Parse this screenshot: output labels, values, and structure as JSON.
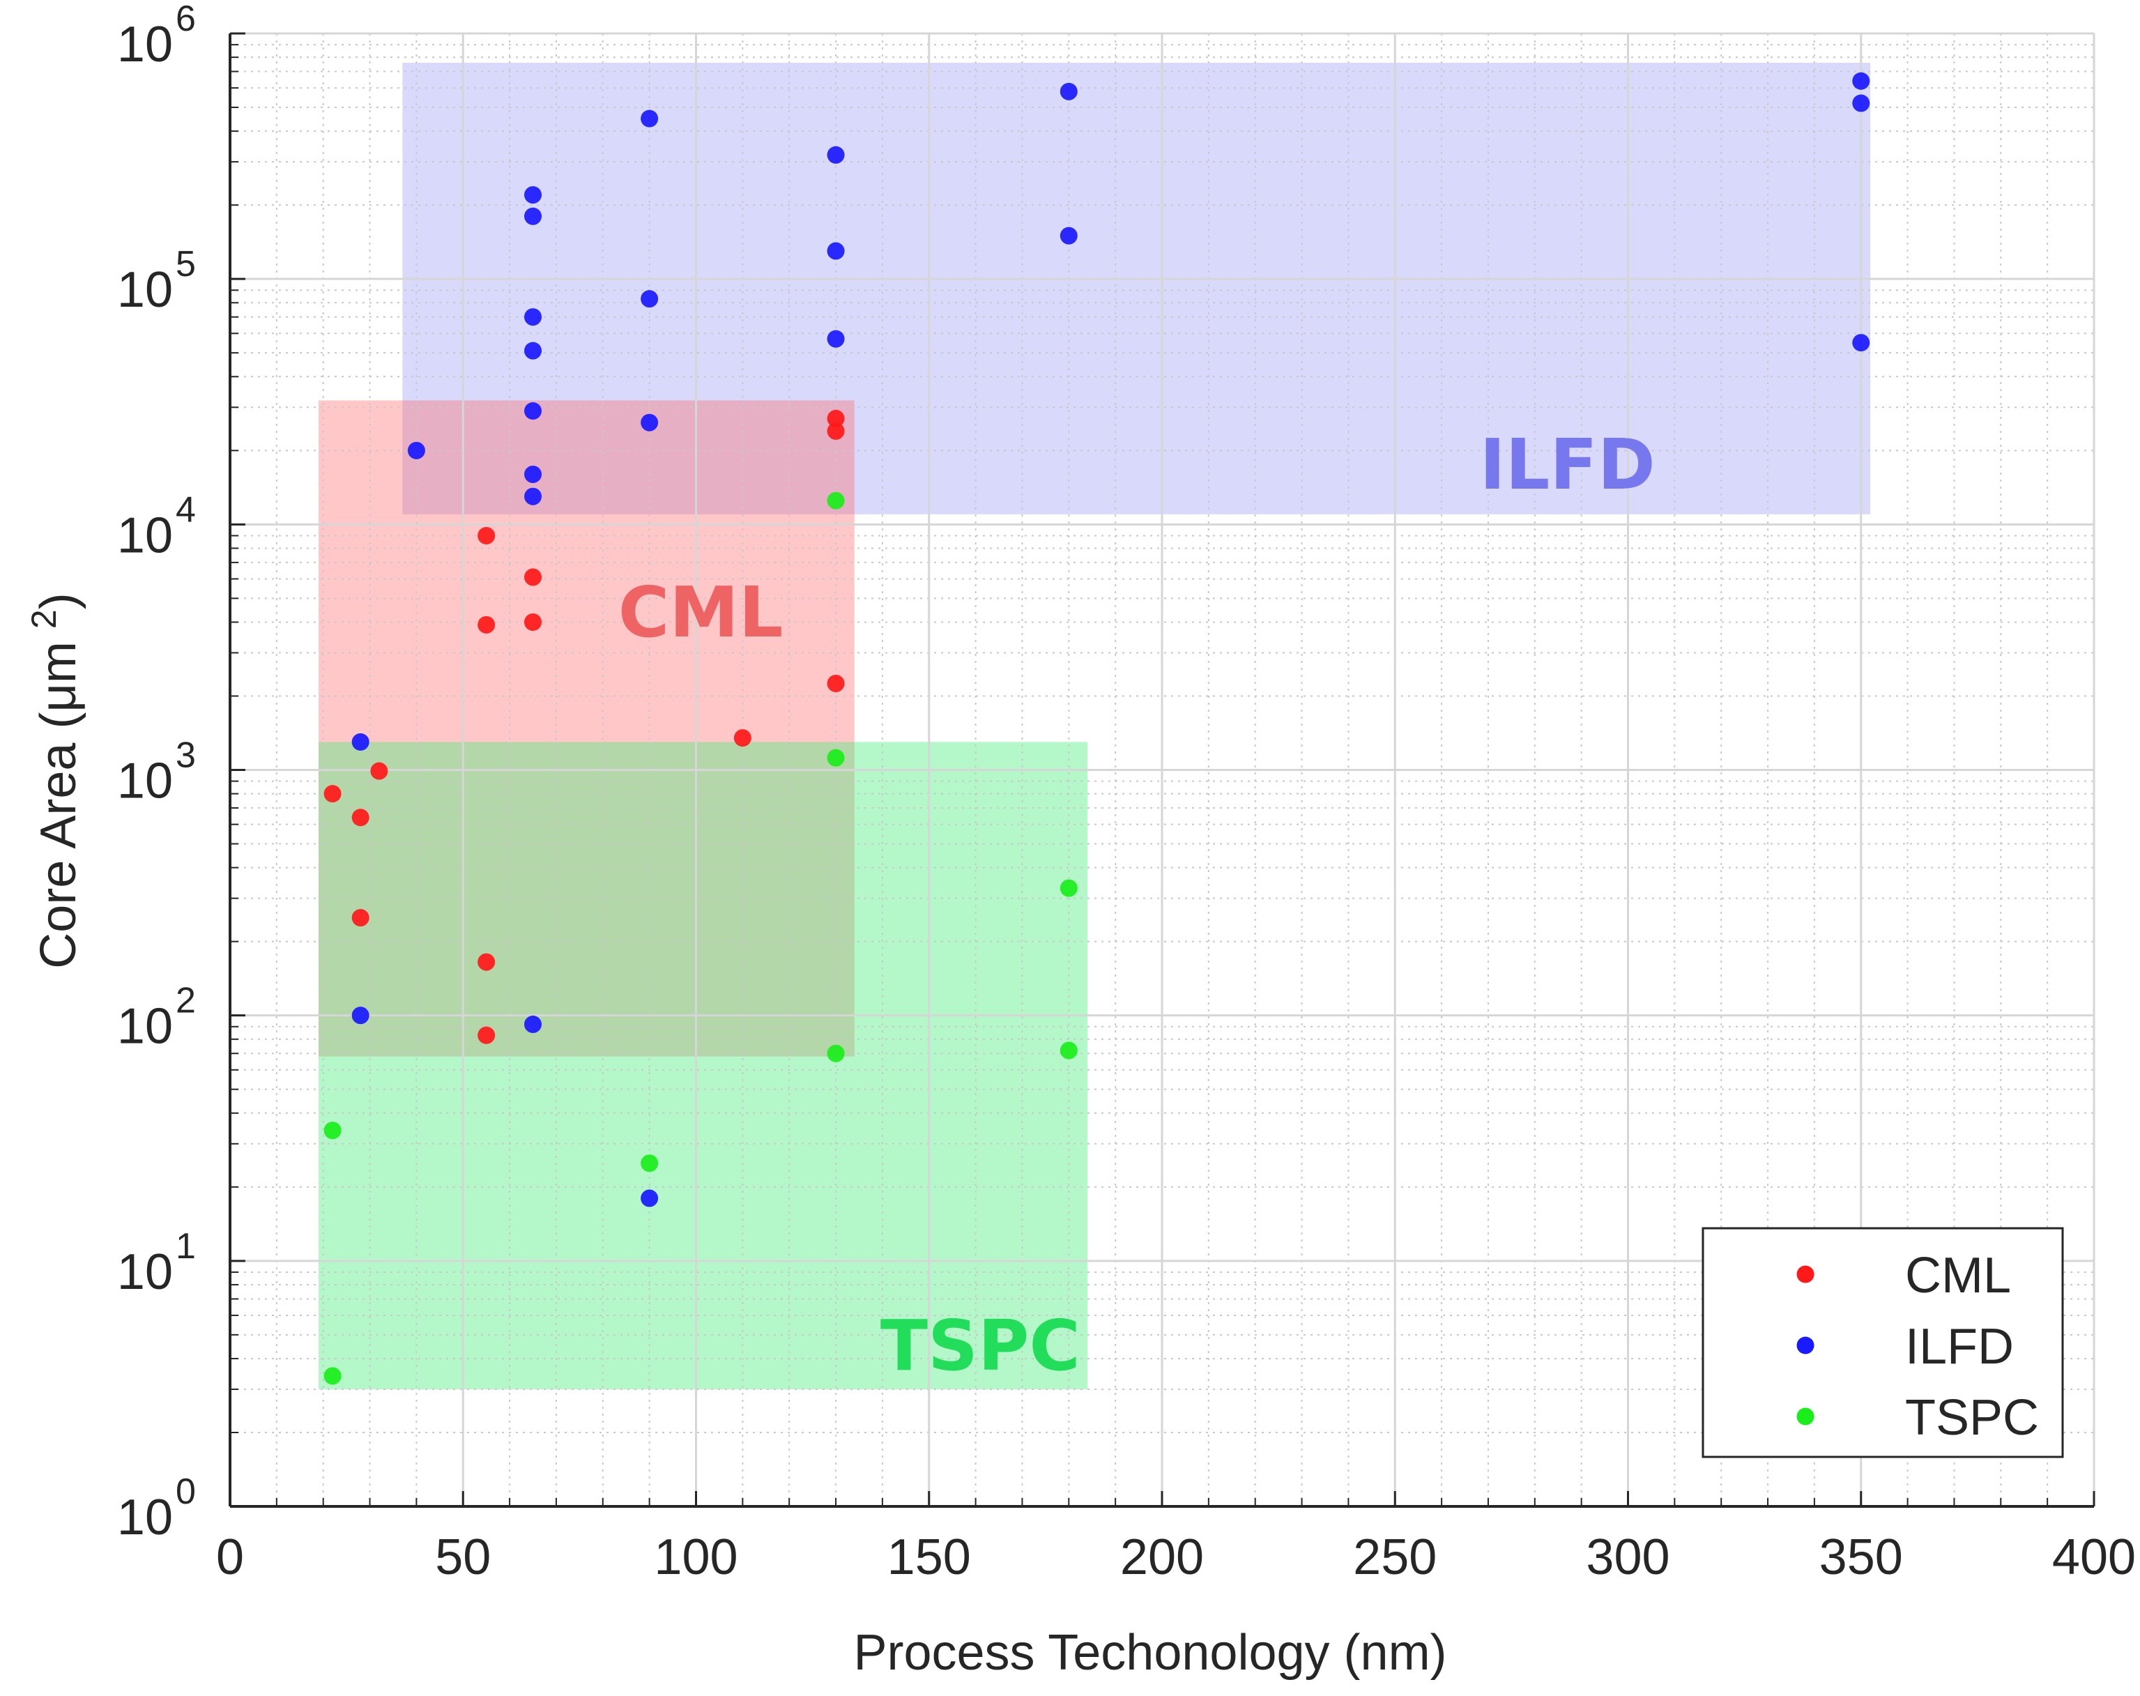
{
  "chart_data": {
    "type": "scatter",
    "title": "",
    "xlabel": "Process Techonology (nm)",
    "ylabel": "Core Area (μm 2)",
    "ylabel_text": "Core Area (μm",
    "ylabel_sup": "2",
    "ylabel_close": ")",
    "xlim": [
      0,
      400
    ],
    "ylim": [
      1,
      1000000
    ],
    "yscale": "log",
    "grid": true,
    "minor_grid": true,
    "x_ticks": [
      0,
      50,
      100,
      150,
      200,
      250,
      300,
      350,
      400
    ],
    "x_tick_labels": [
      "0",
      "50",
      "100",
      "150",
      "200",
      "250",
      "300",
      "350",
      "400"
    ],
    "y_ticks": [
      {
        "value": 1,
        "base": "10",
        "exp": "0"
      },
      {
        "value": 10,
        "base": "10",
        "exp": "1"
      },
      {
        "value": 100,
        "base": "10",
        "exp": "2"
      },
      {
        "value": 1000,
        "base": "10",
        "exp": "3"
      },
      {
        "value": 10000,
        "base": "10",
        "exp": "4"
      },
      {
        "value": 100000,
        "base": "10",
        "exp": "5"
      },
      {
        "value": 1000000,
        "base": "10",
        "exp": "6"
      }
    ],
    "legend_position": "bottom-right",
    "regions": [
      {
        "name": "ILFD",
        "label": "ILFD",
        "x_range": [
          37,
          352
        ],
        "y_range": [
          11000,
          760000
        ],
        "fill": "#9a9af5",
        "opacity": 0.38,
        "label_color": "#7777ee",
        "label_at": [
          287,
          14000
        ]
      },
      {
        "name": "CML",
        "label": "CML",
        "x_range": [
          19,
          134
        ],
        "y_range": [
          68,
          32000
        ],
        "fill": "#ff6b6b",
        "opacity": 0.38,
        "label_color": "#ee6464",
        "label_at": [
          101,
          3500
        ]
      },
      {
        "name": "TSPC",
        "label": "TSPC",
        "x_range": [
          19,
          184
        ],
        "y_range": [
          3,
          1300
        ],
        "fill": "#4dee80",
        "opacity": 0.42,
        "label_color": "#22dd5a",
        "label_at": [
          161,
          3.6
        ]
      }
    ],
    "series": [
      {
        "name": "CML",
        "color": "#ff1a1a",
        "points": [
          [
            22,
            800
          ],
          [
            28,
            640
          ],
          [
            32,
            990
          ],
          [
            28,
            250
          ],
          [
            55,
            165
          ],
          [
            55,
            83
          ],
          [
            55,
            9000
          ],
          [
            55,
            3900
          ],
          [
            65,
            6100
          ],
          [
            65,
            4000
          ],
          [
            110,
            1350
          ],
          [
            130,
            2250
          ],
          [
            130,
            27000
          ],
          [
            130,
            24000
          ]
        ]
      },
      {
        "name": "ILFD",
        "color": "#1a1aff",
        "points": [
          [
            40,
            20000
          ],
          [
            65,
            220000
          ],
          [
            65,
            180000
          ],
          [
            65,
            70000
          ],
          [
            65,
            51000
          ],
          [
            65,
            29000
          ],
          [
            65,
            16000
          ],
          [
            65,
            13000
          ],
          [
            90,
            450000
          ],
          [
            90,
            83000
          ],
          [
            90,
            26000
          ],
          [
            130,
            320000
          ],
          [
            130,
            130000
          ],
          [
            130,
            57000
          ],
          [
            180,
            580000
          ],
          [
            180,
            150000
          ],
          [
            350,
            640000
          ],
          [
            350,
            520000
          ],
          [
            350,
            55000
          ],
          [
            28,
            1300
          ],
          [
            28,
            100
          ],
          [
            65,
            92
          ],
          [
            90,
            18
          ]
        ]
      },
      {
        "name": "TSPC",
        "color": "#1aee1a",
        "points": [
          [
            22,
            34
          ],
          [
            22,
            3.4
          ],
          [
            90,
            25
          ],
          [
            130,
            12500
          ],
          [
            130,
            1120
          ],
          [
            130,
            70
          ],
          [
            180,
            330
          ],
          [
            180,
            72
          ]
        ]
      }
    ]
  }
}
